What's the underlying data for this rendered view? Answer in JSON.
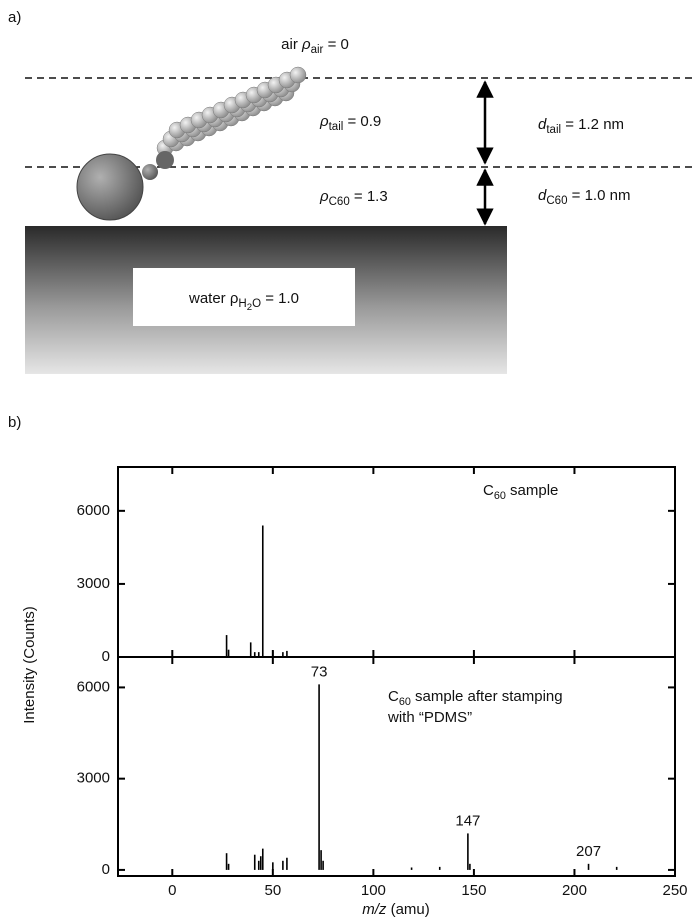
{
  "panel_a": {
    "label": "a)",
    "air": [
      {
        "text": "air "
      },
      {
        "text": "ρ",
        "style": "italic"
      },
      {
        "text": "air",
        "style": "sub"
      },
      {
        "text": " = 0"
      }
    ],
    "rho_tail": [
      {
        "text": "ρ",
        "style": "italic"
      },
      {
        "text": "tail",
        "style": "sub"
      },
      {
        "text": " = 0.9"
      }
    ],
    "rho_c60": [
      {
        "text": "ρ",
        "style": "italic"
      },
      {
        "text": "C60",
        "style": "sub"
      },
      {
        "text": " = 1.3"
      }
    ],
    "d_tail": [
      {
        "text": "d",
        "style": "italic"
      },
      {
        "text": "tail",
        "style": "sub"
      },
      {
        "text": " = 1.2 nm"
      }
    ],
    "d_c60": [
      {
        "text": "d",
        "style": "italic"
      },
      {
        "text": "C60",
        "style": "sub"
      },
      {
        "text": " = 1.0 nm"
      }
    ],
    "water": [
      {
        "text": "water ρ"
      },
      {
        "text": "H",
        "style": "sub"
      },
      {
        "text": "2",
        "style": "subsub"
      },
      {
        "text": "O",
        "style": "sub"
      },
      {
        "text": " = 1.0"
      }
    ]
  },
  "panel_b_label": "b)",
  "y_axis_label": "Intensity (Counts)",
  "chart_data": [
    {
      "type": "stem",
      "color": "#000000",
      "label_lines": [
        [
          {
            "text": "C"
          },
          {
            "text": "60",
            "style": "sub"
          },
          {
            "text": " sample"
          }
        ]
      ],
      "x": [
        27,
        28,
        39,
        41,
        43,
        45,
        50,
        55,
        57
      ],
      "values": [
        900,
        300,
        600,
        200,
        200,
        5400,
        250,
        200,
        250
      ],
      "xlim": [
        -27,
        250
      ],
      "xticks": [
        0,
        50,
        100,
        150,
        200,
        250
      ],
      "ylim": [
        0,
        7800
      ],
      "yticks": [
        0,
        3000,
        6000
      ]
    },
    {
      "type": "stem",
      "color": "#000000",
      "label_lines": [
        [
          {
            "text": "C"
          },
          {
            "text": "60",
            "style": "sub"
          },
          {
            "text": " sample after stamping"
          }
        ],
        [
          {
            "text": "with “PDMS”"
          }
        ]
      ],
      "x": [
        27,
        28,
        41,
        43,
        44,
        45,
        50,
        55,
        57,
        73,
        74,
        75,
        119,
        133,
        147,
        148,
        207,
        221
      ],
      "values": [
        550,
        200,
        500,
        300,
        450,
        700,
        250,
        300,
        400,
        6100,
        650,
        300,
        80,
        100,
        1200,
        200,
        200,
        100
      ],
      "point_labels": [
        null,
        null,
        null,
        null,
        null,
        null,
        null,
        null,
        null,
        "73",
        null,
        null,
        null,
        null,
        "147",
        null,
        "207",
        null
      ],
      "xlim": [
        -27,
        250
      ],
      "xticks": [
        0,
        50,
        100,
        150,
        200,
        250
      ],
      "ylim": [
        -200,
        7000
      ],
      "yticks": [
        0,
        3000,
        6000
      ],
      "xlabel": [
        {
          "text": "m/z",
          "style": "italic"
        },
        {
          "text": " (amu)"
        }
      ]
    }
  ]
}
